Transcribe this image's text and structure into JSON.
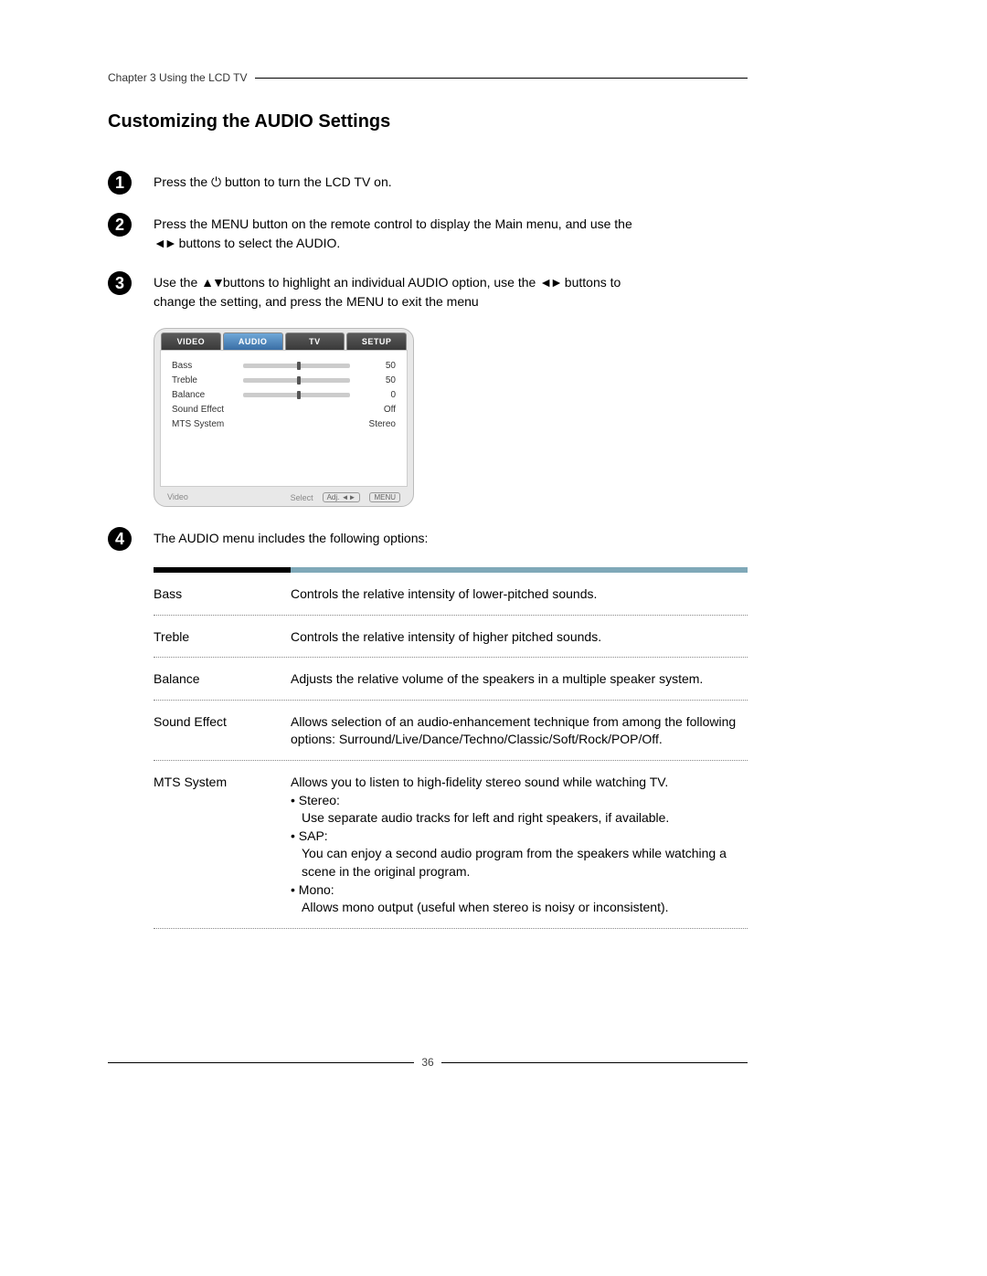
{
  "chapter_header": "Chapter 3 Using the LCD TV",
  "section_title": "Customizing the AUDIO Settings",
  "steps": {
    "s1": {
      "num": "1",
      "text_before": "Press the ",
      "icon": "⏻",
      "text_after": " button to turn the LCD TV on."
    },
    "s2": {
      "num": "2",
      "line1_a": "Press the ",
      "line1_b": "MENU",
      "line1_c": " button on the remote control to display the Main menu, and use the",
      "line2_a": "◄►",
      "line2_b": " buttons to select the ",
      "line2_c": "AUDIO",
      "line2_d": "."
    },
    "s3": {
      "num": "3",
      "line1_a": "Use the ",
      "line1_b": "▲▼",
      "line1_c": "buttons to highlight an individual AUDIO option, use the ",
      "line1_d": "◄►",
      "line1_e": " buttons to",
      "line2_a": "change the setting, and press the ",
      "line2_b": "MENU",
      "line2_c": " to exit the menu"
    },
    "s4": {
      "num": "4",
      "text": "The AUDIO menu includes the following options:"
    }
  },
  "osd": {
    "tabs": [
      "VIDEO",
      "AUDIO",
      "TV",
      "SETUP"
    ],
    "active_tab_index": 1,
    "rows": [
      {
        "label": "Bass",
        "has_bar": true,
        "thumb_pct": 50,
        "value": "50"
      },
      {
        "label": "Treble",
        "has_bar": true,
        "thumb_pct": 50,
        "value": "50"
      },
      {
        "label": "Balance",
        "has_bar": true,
        "thumb_pct": 50,
        "value": "0"
      },
      {
        "label": "Sound Effect",
        "has_bar": false,
        "value": "Off"
      },
      {
        "label": "MTS System",
        "has_bar": false,
        "value": "Stereo"
      }
    ],
    "footer_left": "Video",
    "footer_select": "Select",
    "footer_adj": "Adj. ◄►",
    "footer_menu": "MENU"
  },
  "options_table": [
    {
      "name": "Bass",
      "lines": [
        "Controls the relative intensity of lower-pitched sounds."
      ]
    },
    {
      "name": "Treble",
      "lines": [
        "Controls the relative intensity of higher pitched sounds."
      ]
    },
    {
      "name": "Balance",
      "lines": [
        "Adjusts the relative volume of the speakers in a multiple speaker system."
      ]
    },
    {
      "name": "Sound Effect",
      "lines": [
        "Allows selection of an audio-enhancement technique from among the following options: Surround/Live/Dance/Techno/Classic/Soft/Rock/POP/Off."
      ]
    },
    {
      "name": "MTS System",
      "lines": [
        "Allows you to listen to high-fidelity stereo sound while watching TV.",
        "• Stereo:",
        "Use separate audio tracks for left and right speakers, if available.",
        "• SAP:",
        "You can enjoy a second audio program from the speakers while watching a scene in the original program.",
        "• Mono:",
        "Allows mono output (useful when stereo is noisy or inconsistent)."
      ]
    }
  ],
  "page_number": "36",
  "colors": {
    "bar_dark": "#000000",
    "bar_light": "#7fa8b8",
    "tab_active": "#3a6ea5"
  }
}
